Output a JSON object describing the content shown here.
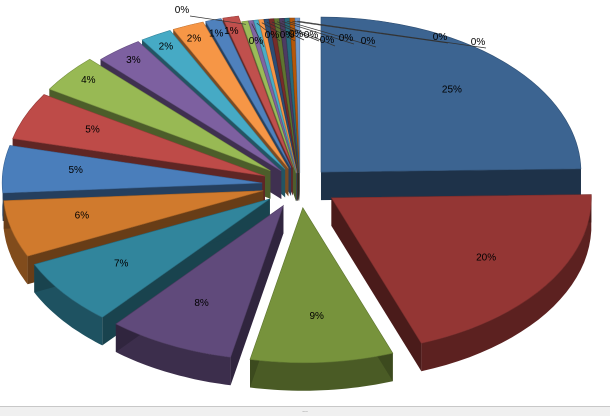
{
  "chart_data": {
    "type": "pie",
    "style": "3d-exploded",
    "title": "",
    "legend": "none",
    "slices": [
      {
        "value": 25,
        "label": "25%",
        "color": "#3c6491"
      },
      {
        "value": 20,
        "label": "20%",
        "color": "#943634"
      },
      {
        "value": 9,
        "label": "9%",
        "color": "#77933c"
      },
      {
        "value": 8,
        "label": "8%",
        "color": "#604a7b"
      },
      {
        "value": 7,
        "label": "7%",
        "color": "#31859c"
      },
      {
        "value": 6,
        "label": "6%",
        "color": "#d07a2d"
      },
      {
        "value": 5,
        "label": "5%",
        "color": "#4a7ebb"
      },
      {
        "value": 5,
        "label": "5%",
        "color": "#be4b48"
      },
      {
        "value": 4,
        "label": "4%",
        "color": "#98b954"
      },
      {
        "value": 3,
        "label": "3%",
        "color": "#7d60a0"
      },
      {
        "value": 2,
        "label": "2%",
        "color": "#46aac5"
      },
      {
        "value": 2,
        "label": "2%",
        "color": "#f69646"
      },
      {
        "value": 1,
        "label": "1%",
        "color": "#4f81bd"
      },
      {
        "value": 1,
        "label": "1%",
        "color": "#c0504d"
      },
      {
        "value": 0.4,
        "label": "0%",
        "color": "#9bbb59"
      },
      {
        "value": 0.3,
        "label": "0%",
        "color": "#8064a2"
      },
      {
        "value": 0.3,
        "label": "0%",
        "color": "#4bacc6"
      },
      {
        "value": 0.3,
        "label": "0%",
        "color": "#f79646"
      },
      {
        "value": 0.3,
        "label": "0%",
        "color": "#2c4d75"
      },
      {
        "value": 0.3,
        "label": "0%",
        "color": "#772c2a"
      },
      {
        "value": 0.3,
        "label": "0%",
        "color": "#5f7530"
      },
      {
        "value": 0.3,
        "label": "0%",
        "color": "#4d3b62"
      },
      {
        "value": 0.3,
        "label": "0%",
        "color": "#276a7c"
      },
      {
        "value": 0.3,
        "label": "0%",
        "color": "#b65708"
      },
      {
        "value": 0.3,
        "label": "0%",
        "color": "#729aca"
      }
    ]
  },
  "window": {
    "sheet_grip_label": "..."
  }
}
